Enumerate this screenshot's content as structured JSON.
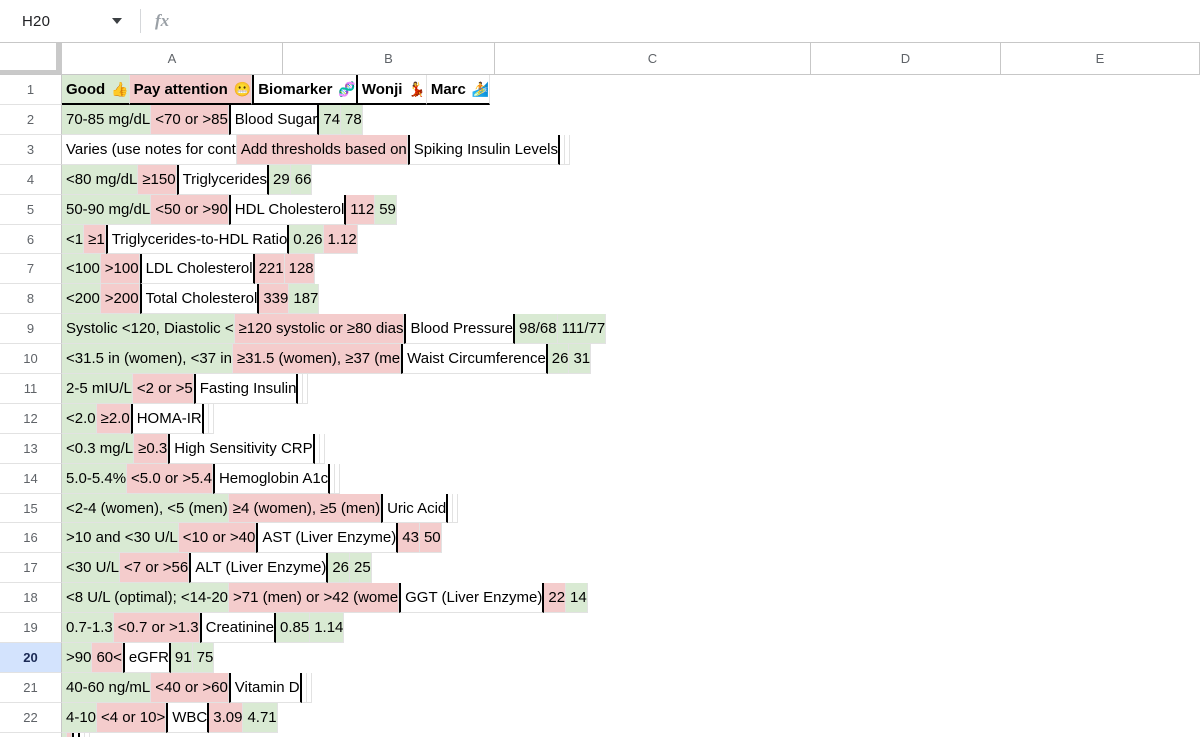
{
  "palette": {
    "good_green": "#d9ead3",
    "attention_red": "#f4cccc",
    "selected_row_blue": "#d3e3fd"
  },
  "name_box": {
    "value": "H20"
  },
  "formula_bar": {
    "fx_label": "fx"
  },
  "column_letters": [
    "A",
    "B",
    "C",
    "D",
    "E"
  ],
  "selected_row": "20",
  "header_cells": [
    {
      "text": "Good",
      "emoji": "👍",
      "emoji_name": "thumbs-up-emoji",
      "bg": "green"
    },
    {
      "text": "Pay attention",
      "emoji": "😬",
      "emoji_name": "grimacing-face-emoji",
      "bg": "red"
    },
    {
      "text": "Biomarker",
      "emoji": "🧬",
      "emoji_name": "dna-emoji",
      "bg": "white"
    },
    {
      "text": "Wonji",
      "emoji": "💃",
      "emoji_name": "dancer-emoji",
      "bg": "white"
    },
    {
      "text": "Marc",
      "emoji": "🏄",
      "emoji_name": "surfer-emoji",
      "bg": "white"
    }
  ],
  "data_rows": [
    {
      "num": "2",
      "selected": false,
      "cells": [
        {
          "t": "70-85 mg/dL",
          "bg": "green"
        },
        {
          "t": "<70 or >85",
          "bg": "red"
        },
        {
          "t": "Blood Sugar",
          "bg": "white"
        },
        {
          "t": "74",
          "bg": "green"
        },
        {
          "t": "78",
          "bg": "green"
        }
      ]
    },
    {
      "num": "3",
      "selected": false,
      "cells": [
        {
          "t": "Varies (use notes for cont",
          "bg": "white"
        },
        {
          "t": "Add thresholds based on",
          "bg": "red"
        },
        {
          "t": "Spiking Insulin Levels",
          "bg": "white"
        },
        {
          "t": "",
          "bg": "white"
        },
        {
          "t": "",
          "bg": "white"
        }
      ]
    },
    {
      "num": "4",
      "selected": false,
      "cells": [
        {
          "t": "<80 mg/dL",
          "bg": "green"
        },
        {
          "t": "≥150",
          "bg": "red"
        },
        {
          "t": "Triglycerides",
          "bg": "white"
        },
        {
          "t": "29",
          "bg": "green"
        },
        {
          "t": "66",
          "bg": "green"
        }
      ]
    },
    {
      "num": "5",
      "selected": false,
      "cells": [
        {
          "t": "50-90 mg/dL",
          "bg": "green"
        },
        {
          "t": "<50 or >90",
          "bg": "red"
        },
        {
          "t": "HDL Cholesterol",
          "bg": "white"
        },
        {
          "t": "112",
          "bg": "red"
        },
        {
          "t": "59",
          "bg": "green"
        }
      ]
    },
    {
      "num": "6",
      "selected": false,
      "cells": [
        {
          "t": "<1",
          "bg": "green"
        },
        {
          "t": "≥1",
          "bg": "red"
        },
        {
          "t": "Triglycerides-to-HDL Ratio",
          "bg": "white"
        },
        {
          "t": "0.26",
          "bg": "green"
        },
        {
          "t": "1.12",
          "bg": "red"
        }
      ]
    },
    {
      "num": "7",
      "selected": false,
      "cells": [
        {
          "t": "<100",
          "bg": "green"
        },
        {
          "t": ">100",
          "bg": "red"
        },
        {
          "t": "LDL Cholesterol",
          "bg": "white"
        },
        {
          "t": "221",
          "bg": "red"
        },
        {
          "t": "128",
          "bg": "red"
        }
      ]
    },
    {
      "num": "8",
      "selected": false,
      "cells": [
        {
          "t": "<200",
          "bg": "green"
        },
        {
          "t": ">200",
          "bg": "red"
        },
        {
          "t": "Total Cholesterol",
          "bg": "white"
        },
        {
          "t": "339",
          "bg": "red"
        },
        {
          "t": "187",
          "bg": "green"
        }
      ]
    },
    {
      "num": "9",
      "selected": false,
      "cells": [
        {
          "t": "Systolic <120, Diastolic <",
          "bg": "green"
        },
        {
          "t": "≥120 systolic or ≥80 dias",
          "bg": "red"
        },
        {
          "t": "Blood Pressure",
          "bg": "white"
        },
        {
          "t": "98/68",
          "bg": "green"
        },
        {
          "t": "111/77",
          "bg": "green"
        }
      ]
    },
    {
      "num": "10",
      "selected": false,
      "cells": [
        {
          "t": "<31.5 in (women), <37 in",
          "bg": "green"
        },
        {
          "t": "≥31.5 (women), ≥37 (me",
          "bg": "red"
        },
        {
          "t": "Waist Circumference",
          "bg": "white"
        },
        {
          "t": "26",
          "bg": "green"
        },
        {
          "t": "31",
          "bg": "green"
        }
      ]
    },
    {
      "num": "11",
      "selected": false,
      "cells": [
        {
          "t": "2-5 mIU/L",
          "bg": "green"
        },
        {
          "t": "<2 or >5",
          "bg": "red"
        },
        {
          "t": "Fasting Insulin",
          "bg": "white"
        },
        {
          "t": "",
          "bg": "white"
        },
        {
          "t": "",
          "bg": "white"
        }
      ]
    },
    {
      "num": "12",
      "selected": false,
      "cells": [
        {
          "t": "<2.0",
          "bg": "green"
        },
        {
          "t": "≥2.0",
          "bg": "red"
        },
        {
          "t": "HOMA-IR",
          "bg": "white"
        },
        {
          "t": "",
          "bg": "white"
        },
        {
          "t": "",
          "bg": "white"
        }
      ]
    },
    {
      "num": "13",
      "selected": false,
      "cells": [
        {
          "t": "<0.3 mg/L",
          "bg": "green"
        },
        {
          "t": "≥0.3",
          "bg": "red"
        },
        {
          "t": "High Sensitivity CRP",
          "bg": "white"
        },
        {
          "t": "",
          "bg": "white"
        },
        {
          "t": "",
          "bg": "white"
        }
      ]
    },
    {
      "num": "14",
      "selected": false,
      "cells": [
        {
          "t": "5.0-5.4%",
          "bg": "green"
        },
        {
          "t": "<5.0 or >5.4",
          "bg": "red"
        },
        {
          "t": "Hemoglobin A1c",
          "bg": "white"
        },
        {
          "t": "",
          "bg": "white"
        },
        {
          "t": "",
          "bg": "white"
        }
      ]
    },
    {
      "num": "15",
      "selected": false,
      "cells": [
        {
          "t": "<2-4 (women), <5 (men)",
          "bg": "green"
        },
        {
          "t": "≥4 (women), ≥5 (men)",
          "bg": "red"
        },
        {
          "t": "Uric Acid",
          "bg": "white"
        },
        {
          "t": "",
          "bg": "white"
        },
        {
          "t": "",
          "bg": "white"
        }
      ]
    },
    {
      "num": "16",
      "selected": false,
      "cells": [
        {
          "t": ">10 and <30 U/L",
          "bg": "green"
        },
        {
          "t": "<10 or >40",
          "bg": "red"
        },
        {
          "t": "AST (Liver Enzyme)",
          "bg": "white"
        },
        {
          "t": "43",
          "bg": "red"
        },
        {
          "t": "50",
          "bg": "red"
        }
      ]
    },
    {
      "num": "17",
      "selected": false,
      "cells": [
        {
          "t": "<30 U/L",
          "bg": "green"
        },
        {
          "t": "<7 or >56",
          "bg": "red"
        },
        {
          "t": "ALT (Liver Enzyme)",
          "bg": "white"
        },
        {
          "t": "26",
          "bg": "green"
        },
        {
          "t": "25",
          "bg": "green"
        }
      ]
    },
    {
      "num": "18",
      "selected": false,
      "cells": [
        {
          "t": "<8 U/L (optimal); <14-20",
          "bg": "green"
        },
        {
          "t": ">71 (men) or >42 (wome",
          "bg": "red"
        },
        {
          "t": "GGT (Liver Enzyme)",
          "bg": "white"
        },
        {
          "t": "22",
          "bg": "red"
        },
        {
          "t": "14",
          "bg": "green"
        }
      ]
    },
    {
      "num": "19",
      "selected": false,
      "cells": [
        {
          "t": "0.7-1.3",
          "bg": "green"
        },
        {
          "t": "<0.7 or >1.3",
          "bg": "red"
        },
        {
          "t": "Creatinine",
          "bg": "white"
        },
        {
          "t": "0.85",
          "bg": "green"
        },
        {
          "t": "1.14",
          "bg": "green"
        }
      ]
    },
    {
      "num": "20",
      "selected": true,
      "cells": [
        {
          "t": ">90",
          "bg": "green"
        },
        {
          "t": "60<",
          "bg": "red"
        },
        {
          "t": "eGFR",
          "bg": "white"
        },
        {
          "t": "91",
          "bg": "green"
        },
        {
          "t": "75",
          "bg": "green"
        }
      ]
    },
    {
      "num": "21",
      "selected": false,
      "cells": [
        {
          "t": "40-60 ng/mL",
          "bg": "green"
        },
        {
          "t": "<40 or >60",
          "bg": "red"
        },
        {
          "t": "Vitamin D",
          "bg": "white"
        },
        {
          "t": "",
          "bg": "white"
        },
        {
          "t": "",
          "bg": "white"
        }
      ]
    },
    {
      "num": "22",
      "selected": false,
      "cells": [
        {
          "t": "4-10",
          "bg": "green"
        },
        {
          "t": "<4 or 10>",
          "bg": "red"
        },
        {
          "t": "WBC",
          "bg": "white"
        },
        {
          "t": "3.09",
          "bg": "red"
        },
        {
          "t": "4.71",
          "bg": "green"
        }
      ]
    }
  ],
  "partial_row": {
    "cells": [
      {
        "bg": "green"
      },
      {
        "bg": "red"
      },
      {
        "bg": "white"
      },
      {
        "bg": "white"
      },
      {
        "bg": "white"
      }
    ]
  }
}
